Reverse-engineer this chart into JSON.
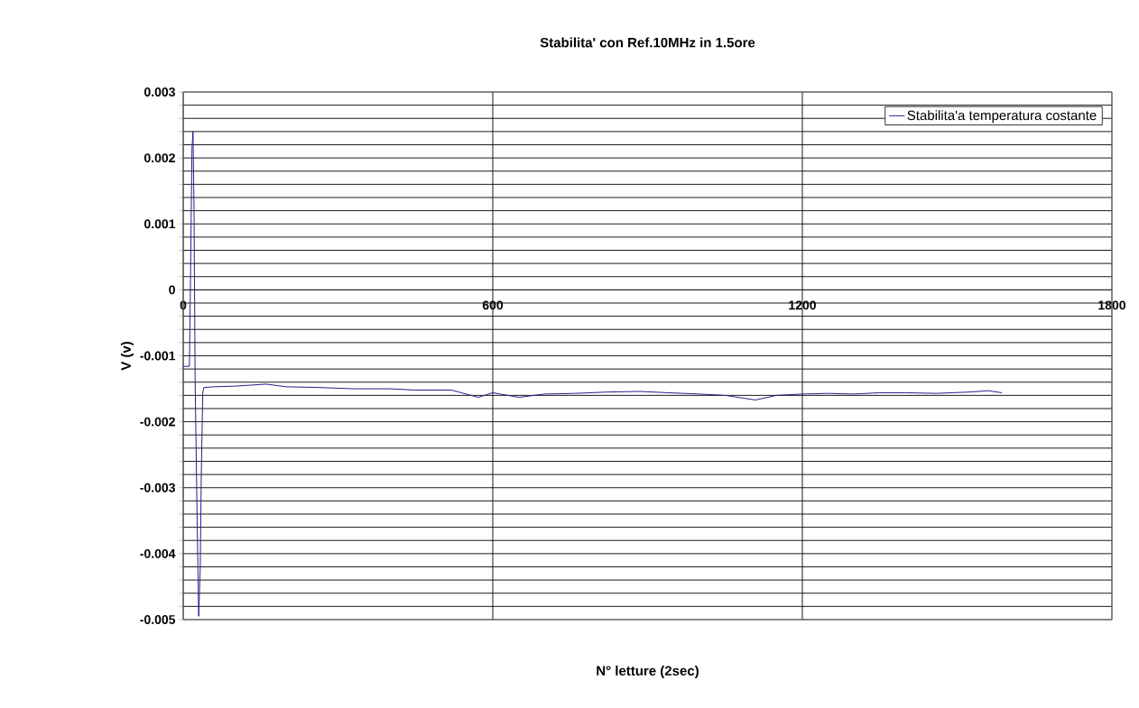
{
  "chart_data": {
    "type": "line",
    "title": "Stabilita' con Ref.10MHz in 1.5ore",
    "xlabel": "N° letture (2sec)",
    "ylabel": "V (v)",
    "series": [
      {
        "name": "Stabilita'a temperatura costante",
        "color": "#20208c",
        "x": [
          0,
          1,
          12,
          14,
          17,
          19,
          21,
          23,
          27,
          30,
          33,
          35,
          38,
          40,
          60,
          100,
          161,
          200,
          260,
          330,
          400,
          450,
          520,
          572,
          600,
          651,
          700,
          760,
          820,
          885,
          939,
          1000,
          1050,
          1109,
          1150,
          1200,
          1250,
          1300,
          1350,
          1400,
          1460,
          1522,
          1560,
          1587
        ],
        "values": [
          -0.00116,
          -0.00116,
          -0.00116,
          0.0001,
          0.00215,
          0.0024,
          0.0012,
          -0.00133,
          -0.0035,
          -0.00495,
          -0.0042,
          -0.0028,
          -0.00155,
          -0.00148,
          -0.00147,
          -0.00146,
          -0.00143,
          -0.00147,
          -0.00148,
          -0.0015,
          -0.0015,
          -0.00152,
          -0.00152,
          -0.00163,
          -0.00156,
          -0.00163,
          -0.00158,
          -0.00157,
          -0.00155,
          -0.00154,
          -0.00156,
          -0.00158,
          -0.0016,
          -0.00167,
          -0.0016,
          -0.00158,
          -0.00157,
          -0.00158,
          -0.00156,
          -0.00156,
          -0.00157,
          -0.00155,
          -0.00153,
          -0.00156
        ]
      }
    ],
    "xlim": [
      0,
      1800
    ],
    "xticks": [
      0,
      600,
      1200,
      1800
    ],
    "ylim": [
      -0.005,
      0.003
    ],
    "yticks": [
      -0.005,
      {
        "value": -0.0048,
        "label": null
      },
      {
        "value": -0.0046,
        "label": null
      },
      {
        "value": -0.0044,
        "label": null
      },
      {
        "value": -0.0042,
        "label": null
      },
      -0.004,
      {
        "value": -0.0038,
        "label": null
      },
      {
        "value": -0.0036,
        "label": null
      },
      {
        "value": -0.0034,
        "label": null
      },
      {
        "value": -0.0032,
        "label": null
      },
      -0.003,
      {
        "value": -0.0028,
        "label": null
      },
      {
        "value": -0.0026,
        "label": null
      },
      {
        "value": -0.0024,
        "label": null
      },
      {
        "value": -0.0022,
        "label": null
      },
      -0.002,
      {
        "value": -0.0018,
        "label": null
      },
      {
        "value": -0.0016,
        "label": null
      },
      {
        "value": -0.0014,
        "label": null
      },
      {
        "value": -0.0012,
        "label": null
      },
      -0.001,
      {
        "value": -0.0008,
        "label": null
      },
      {
        "value": -0.0006,
        "label": null
      },
      {
        "value": -0.0004,
        "label": null
      },
      {
        "value": -0.0002,
        "label": null
      },
      0,
      {
        "value": 0.0002,
        "label": null
      },
      {
        "value": 0.0004,
        "label": null
      },
      {
        "value": 0.0006,
        "label": null
      },
      {
        "value": 0.0008,
        "label": null
      },
      0.001,
      {
        "value": 0.0012,
        "label": null
      },
      {
        "value": 0.0014,
        "label": null
      },
      {
        "value": 0.0016,
        "label": null
      },
      {
        "value": 0.0018,
        "label": null
      },
      0.002,
      {
        "value": 0.0022,
        "label": null
      },
      {
        "value": 0.0024,
        "label": null
      },
      {
        "value": 0.0026,
        "label": null
      },
      {
        "value": 0.0028,
        "label": null
      },
      0.003
    ],
    "grid": true,
    "legend": "top right",
    "line_style": "solid"
  }
}
